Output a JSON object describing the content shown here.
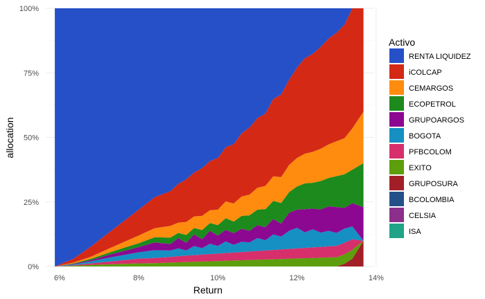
{
  "chart_data": {
    "type": "area",
    "stacked": true,
    "xlabel": "Return",
    "ylabel": "allocation",
    "x_tick_labels": [
      "6%",
      "8%",
      "10%",
      "12%",
      "14%"
    ],
    "x_ticks": [
      0.06,
      0.08,
      0.1,
      0.12,
      0.14
    ],
    "xlim": [
      0.0565,
      0.1395
    ],
    "y_tick_labels": [
      "0%",
      "25%",
      "50%",
      "75%",
      "100%"
    ],
    "y_ticks": [
      0,
      0.25,
      0.5,
      0.75,
      1.0
    ],
    "ylim": [
      0,
      1
    ],
    "grid": true,
    "legend_title": "Activo",
    "legend_position": "right",
    "x": [
      0.0588,
      0.0635,
      0.068,
      0.072,
      0.076,
      0.08,
      0.084,
      0.088,
      0.09,
      0.092,
      0.094,
      0.096,
      0.098,
      0.1,
      0.102,
      0.104,
      0.106,
      0.108,
      0.11,
      0.112,
      0.114,
      0.116,
      0.118,
      0.12,
      0.122,
      0.124,
      0.126,
      0.128,
      0.13,
      0.132,
      0.134,
      0.1368
    ],
    "series": [
      {
        "name": "ISA",
        "color": "#20a386",
        "values": [
          0,
          0,
          0,
          0,
          0,
          0,
          0,
          0,
          0,
          0,
          0,
          0,
          0,
          0,
          0,
          0,
          0,
          0,
          0,
          0,
          0,
          0,
          0,
          0,
          0,
          0,
          0,
          0,
          0,
          0,
          0,
          0
        ]
      },
      {
        "name": "CELSIA",
        "color": "#8b2f8b",
        "values": [
          0,
          0,
          0,
          0,
          0,
          0,
          0,
          0,
          0,
          0,
          0,
          0,
          0,
          0,
          0,
          0,
          0,
          0,
          0,
          0,
          0,
          0,
          0,
          0,
          0,
          0,
          0,
          0,
          0,
          0,
          0,
          0
        ]
      },
      {
        "name": "BCOLOMBIA",
        "color": "#24508a",
        "values": [
          0,
          0,
          0,
          0,
          0,
          0,
          0,
          0,
          0,
          0,
          0,
          0,
          0,
          0,
          0,
          0,
          0,
          0,
          0,
          0,
          0,
          0,
          0,
          0,
          0,
          0,
          0,
          0,
          0,
          0,
          0,
          0
        ]
      },
      {
        "name": "GRUPOSURA",
        "color": "#a31f27",
        "values": [
          0,
          0,
          0,
          0,
          0,
          0,
          0,
          0,
          0,
          0,
          0,
          0,
          0,
          0,
          0,
          0,
          0,
          0,
          0,
          0,
          0,
          0,
          0,
          0,
          0,
          0,
          0,
          0,
          0,
          0.01,
          0.03,
          0.1
        ]
      },
      {
        "name": "EXITO",
        "color": "#5c9e0b",
        "values": [
          0,
          0.003,
          0.006,
          0.008,
          0.01,
          0.012,
          0.013,
          0.015,
          0.016,
          0.017,
          0.018,
          0.019,
          0.02,
          0.021,
          0.022,
          0.023,
          0.024,
          0.025,
          0.026,
          0.027,
          0.028,
          0.029,
          0.03,
          0.031,
          0.032,
          0.033,
          0.034,
          0.035,
          0.036,
          0.037,
          0.035,
          0
        ]
      },
      {
        "name": "PFBCOLOM",
        "color": "#d62f6b",
        "values": [
          0,
          0.002,
          0.006,
          0.01,
          0.014,
          0.018,
          0.02,
          0.022,
          0.024,
          0.025,
          0.026,
          0.027,
          0.028,
          0.029,
          0.03,
          0.031,
          0.032,
          0.033,
          0.034,
          0.035,
          0.036,
          0.037,
          0.038,
          0.039,
          0.04,
          0.041,
          0.042,
          0.043,
          0.044,
          0.045,
          0.04,
          0
        ]
      },
      {
        "name": "BOGOTA",
        "color": "#168fc2",
        "values": [
          0,
          0.003,
          0.008,
          0.015,
          0.02,
          0.025,
          0.03,
          0.025,
          0.03,
          0.02,
          0.035,
          0.025,
          0.04,
          0.03,
          0.045,
          0.03,
          0.04,
          0.035,
          0.05,
          0.04,
          0.06,
          0.05,
          0.07,
          0.08,
          0.06,
          0.07,
          0.055,
          0.06,
          0.05,
          0.055,
          0.05,
          0
        ]
      },
      {
        "name": "GRUPOARGOS",
        "color": "#8c0891",
        "values": [
          0,
          0.002,
          0.005,
          0.01,
          0.015,
          0.02,
          0.03,
          0.025,
          0.04,
          0.03,
          0.045,
          0.035,
          0.05,
          0.04,
          0.045,
          0.045,
          0.05,
          0.045,
          0.05,
          0.05,
          0.06,
          0.05,
          0.07,
          0.07,
          0.09,
          0.08,
          0.09,
          0.095,
          0.1,
          0.08,
          0.09,
          0.13
        ]
      },
      {
        "name": "ECOPETROL",
        "color": "#1d8a1d",
        "values": [
          0,
          0.002,
          0.005,
          0.008,
          0.012,
          0.015,
          0.02,
          0.025,
          0.02,
          0.03,
          0.025,
          0.035,
          0.03,
          0.04,
          0.045,
          0.045,
          0.05,
          0.06,
          0.06,
          0.07,
          0.07,
          0.08,
          0.08,
          0.09,
          0.1,
          0.1,
          0.11,
          0.11,
          0.12,
          0.13,
          0.13,
          0.17
        ]
      },
      {
        "name": "CEMARGOS",
        "color": "#ff8c0e",
        "values": [
          0,
          0.003,
          0.008,
          0.015,
          0.022,
          0.03,
          0.035,
          0.045,
          0.04,
          0.05,
          0.045,
          0.055,
          0.05,
          0.06,
          0.065,
          0.07,
          0.075,
          0.08,
          0.085,
          0.09,
          0.095,
          0.1,
          0.105,
          0.11,
          0.115,
          0.12,
          0.125,
          0.13,
          0.135,
          0.14,
          0.16,
          0.2
        ]
      },
      {
        "name": "iCOLCAP",
        "color": "#d42915",
        "values": [
          0,
          0.015,
          0.04,
          0.06,
          0.08,
          0.1,
          0.12,
          0.135,
          0.15,
          0.165,
          0.17,
          0.185,
          0.19,
          0.2,
          0.21,
          0.23,
          0.245,
          0.26,
          0.27,
          0.28,
          0.3,
          0.32,
          0.33,
          0.35,
          0.37,
          0.38,
          0.395,
          0.41,
          0.42,
          0.44,
          0.465,
          0.4
        ]
      },
      {
        "name": "RENTA LIQUIDEZ",
        "color": "#2550c8",
        "values": [
          1.0,
          0.97,
          0.922,
          0.874,
          0.827,
          0.78,
          0.732,
          0.708,
          0.68,
          0.663,
          0.636,
          0.619,
          0.592,
          0.58,
          0.538,
          0.526,
          0.484,
          0.462,
          0.425,
          0.408,
          0.351,
          0.334,
          0.277,
          0.23,
          0.193,
          0.176,
          0.149,
          0.117,
          0.095,
          0.063,
          0,
          0
        ]
      }
    ]
  }
}
